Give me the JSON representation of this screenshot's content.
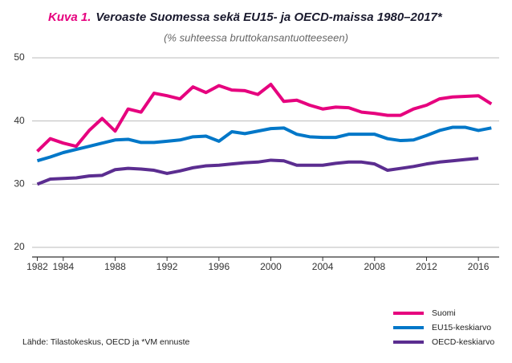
{
  "chart_data": {
    "type": "line",
    "title_label": "Kuva 1.",
    "title": "Veroaste Suomessa sekä EU15- ja OECD-maissa 1980–2017*",
    "subtitle": "(% suhteessa bruttokansantuotteeseen)",
    "source": "Lähde: Tilastokeskus, OECD ja *VM ennuste",
    "x": [
      1982,
      1983,
      1984,
      1985,
      1986,
      1987,
      1988,
      1989,
      1990,
      1991,
      1992,
      1993,
      1994,
      1995,
      1996,
      1997,
      1998,
      1999,
      2000,
      2001,
      2002,
      2003,
      2004,
      2005,
      2006,
      2007,
      2008,
      2009,
      2010,
      2011,
      2012,
      2013,
      2014,
      2015,
      2016,
      2017
    ],
    "series": [
      {
        "name": "Suomi",
        "color": "#e6007e",
        "values": [
          35.2,
          37.2,
          36.5,
          36.0,
          38.5,
          40.4,
          38.4,
          41.9,
          41.4,
          44.4,
          44.0,
          43.5,
          45.4,
          44.5,
          45.6,
          44.9,
          44.8,
          44.2,
          45.8,
          43.1,
          43.3,
          42.5,
          41.9,
          42.2,
          42.1,
          41.4,
          41.2,
          40.9,
          40.9,
          41.9,
          42.5,
          43.5,
          43.8,
          43.9,
          44.0,
          42.7
        ]
      },
      {
        "name": "EU15-keskiarvo",
        "color": "#0077c8",
        "values": [
          33.7,
          34.3,
          35.0,
          35.5,
          36.0,
          36.5,
          37.0,
          37.1,
          36.6,
          36.6,
          36.8,
          37.0,
          37.5,
          37.6,
          36.8,
          38.3,
          38.0,
          38.4,
          38.8,
          38.9,
          37.9,
          37.5,
          37.4,
          37.4,
          37.9,
          37.9,
          37.9,
          37.2,
          36.9,
          37.0,
          37.7,
          38.5,
          39.0,
          39.0,
          38.5,
          38.9
        ]
      },
      {
        "name": "OECD-keskiarvo",
        "color": "#5b2d90",
        "values": [
          30.0,
          30.8,
          30.9,
          31.0,
          31.3,
          31.4,
          32.3,
          32.5,
          32.4,
          32.2,
          31.7,
          32.1,
          32.6,
          32.9,
          33.0,
          33.2,
          33.4,
          33.5,
          33.8,
          33.7,
          33.0,
          33.0,
          33.0,
          33.3,
          33.5,
          33.5,
          33.2,
          32.2,
          32.5,
          32.8,
          33.2,
          33.5,
          33.7,
          33.9,
          34.1,
          null
        ]
      }
    ],
    "xlim": [
      1981.6,
      2017.6
    ],
    "xticks": [
      1982,
      1984,
      1988,
      1992,
      1996,
      2000,
      2004,
      2008,
      2012,
      2016
    ],
    "ylim": [
      20,
      50
    ],
    "yticks": [
      20,
      30,
      40,
      50
    ],
    "grid": true
  }
}
